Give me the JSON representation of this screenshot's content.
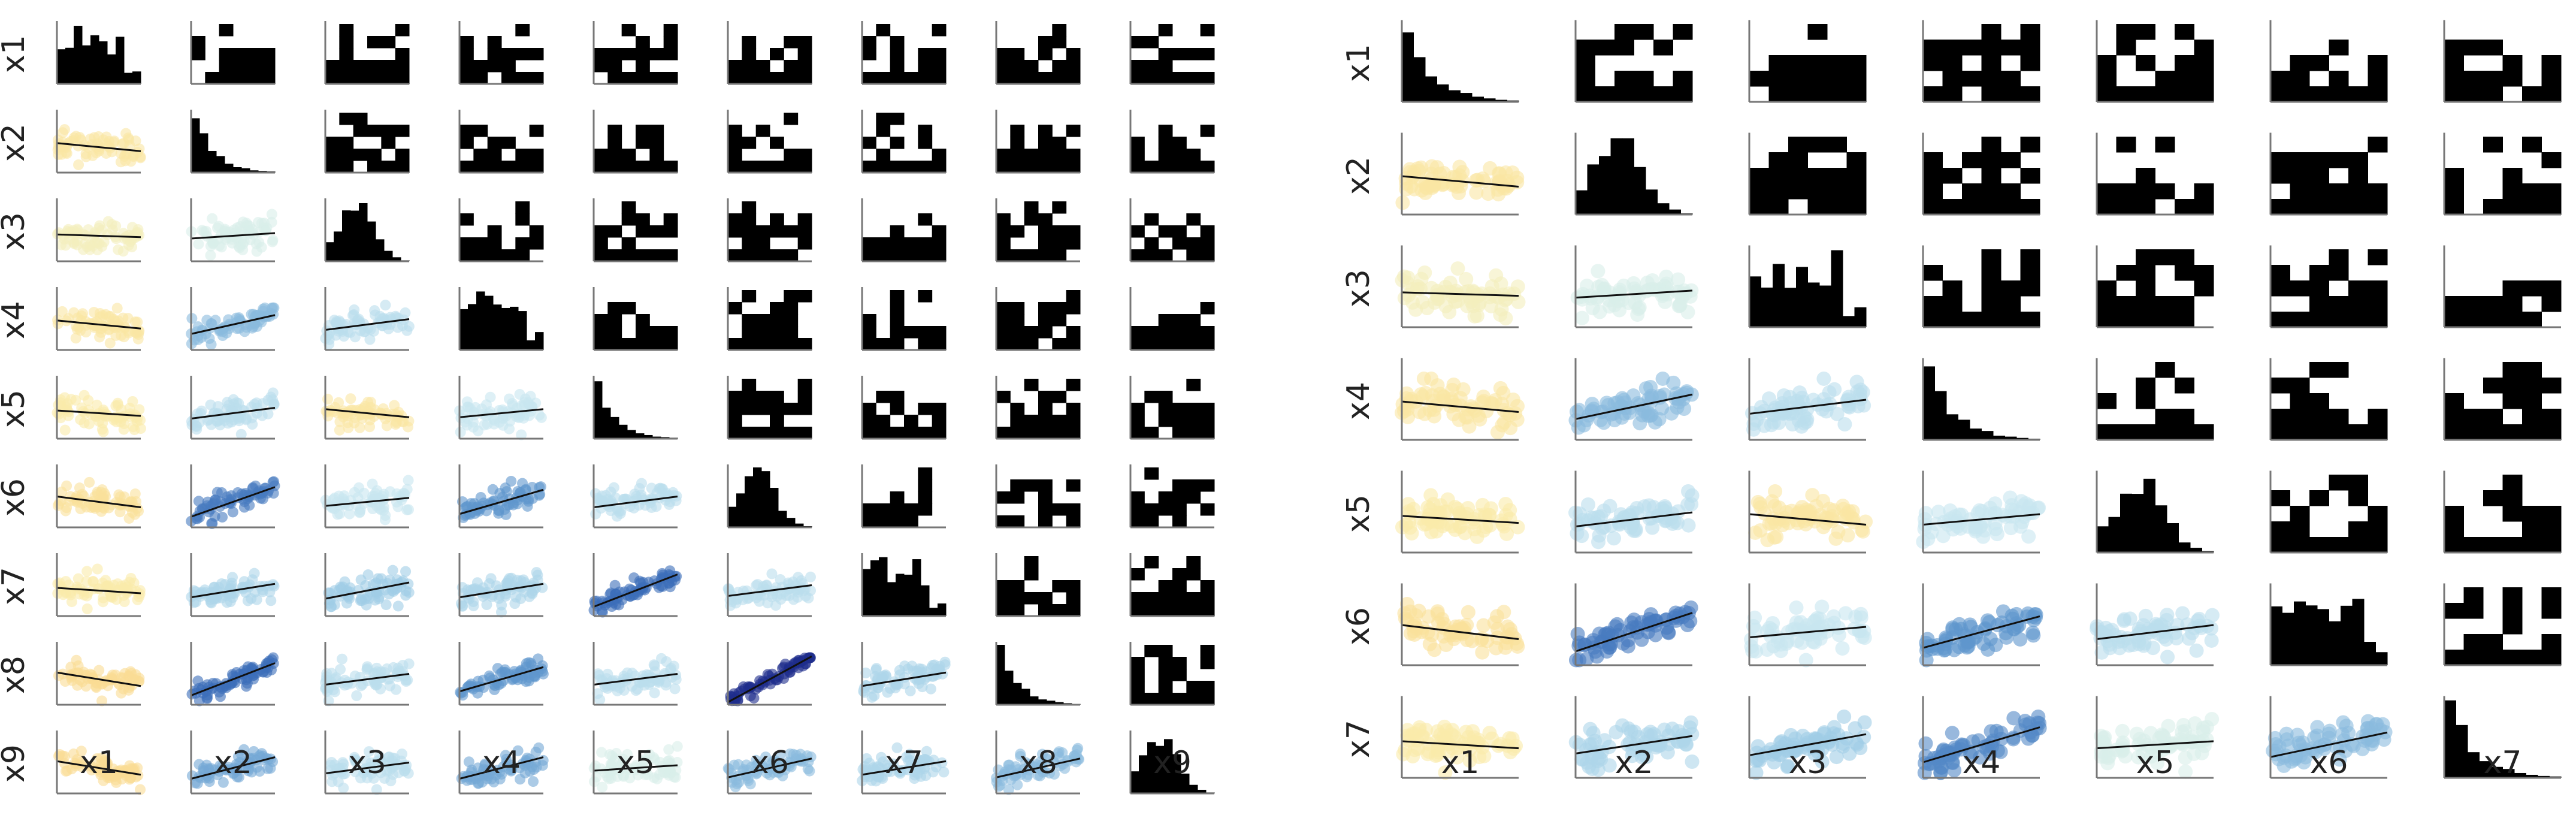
{
  "chart_data": [
    {
      "type": "pairplot",
      "variables": [
        "x1",
        "x2",
        "x3",
        "x4",
        "x5",
        "x6",
        "x7",
        "x8",
        "x9"
      ],
      "x_axis_labels": [
        "x1",
        "x2",
        "x3",
        "x4",
        "x5",
        "x6",
        "x7",
        "x8",
        "x9"
      ],
      "y_axis_labels": [
        "x1",
        "x2",
        "x3",
        "x4",
        "x5",
        "x6",
        "x7",
        "x8",
        "x9"
      ],
      "diagonal": "histogram",
      "off_diagonal_lower": "scatter with linear fit, colored by correlation",
      "off_diagonal_upper": "2D binned density (black cells)",
      "pairwise_correlation_estimates": {
        "x2": {
          "x1": -0.15
        },
        "x3": {
          "x1": -0.05,
          "x2": 0.1
        },
        "x4": {
          "x1": -0.15,
          "x2": 0.35,
          "x3": 0.2
        },
        "x5": {
          "x1": -0.1,
          "x2": 0.2,
          "x3": -0.15,
          "x4": 0.15
        },
        "x6": {
          "x1": -0.2,
          "x2": 0.55,
          "x3": 0.15,
          "x4": 0.45,
          "x5": 0.2
        },
        "x7": {
          "x1": -0.1,
          "x2": 0.25,
          "x3": 0.3,
          "x4": 0.25,
          "x5": 0.6,
          "x6": 0.2
        },
        "x8": {
          "x1": -0.25,
          "x2": 0.6,
          "x3": 0.2,
          "x4": 0.45,
          "x5": 0.2,
          "x6": 0.85,
          "x7": 0.25
        },
        "x9": {
          "x1": -0.25,
          "x2": 0.4,
          "x3": 0.2,
          "x4": 0.4,
          "x5": 0.1,
          "x6": 0.35,
          "x7": 0.25,
          "x8": 0.35
        }
      },
      "colormap": "YlGnBu (higher correlation = darker blue)"
    },
    {
      "type": "pairplot",
      "variables": [
        "x1",
        "x2",
        "x3",
        "x4",
        "x5",
        "x6",
        "x7"
      ],
      "x_axis_labels": [
        "x1",
        "x2",
        "x3",
        "x4",
        "x5",
        "x6",
        "x7"
      ],
      "y_axis_labels": [
        "x1",
        "x2",
        "x3",
        "x4",
        "x5",
        "x6",
        "x7"
      ],
      "diagonal": "histogram",
      "off_diagonal_lower": "scatter with linear fit, colored by correlation",
      "off_diagonal_upper": "2D binned density (black cells)",
      "pairwise_correlation_estimates": {
        "x2": {
          "x1": -0.15
        },
        "x3": {
          "x1": -0.05,
          "x2": 0.1
        },
        "x4": {
          "x1": -0.15,
          "x2": 0.35,
          "x3": 0.2
        },
        "x5": {
          "x1": -0.1,
          "x2": 0.2,
          "x3": -0.15,
          "x4": 0.15
        },
        "x6": {
          "x1": -0.2,
          "x2": 0.55,
          "x3": 0.15,
          "x4": 0.45,
          "x5": 0.2
        },
        "x7": {
          "x1": -0.1,
          "x2": 0.25,
          "x3": 0.3,
          "x4": 0.5,
          "x5": 0.1,
          "x6": 0.35
        }
      },
      "colormap": "YlGnBu (higher correlation = darker blue)"
    }
  ]
}
